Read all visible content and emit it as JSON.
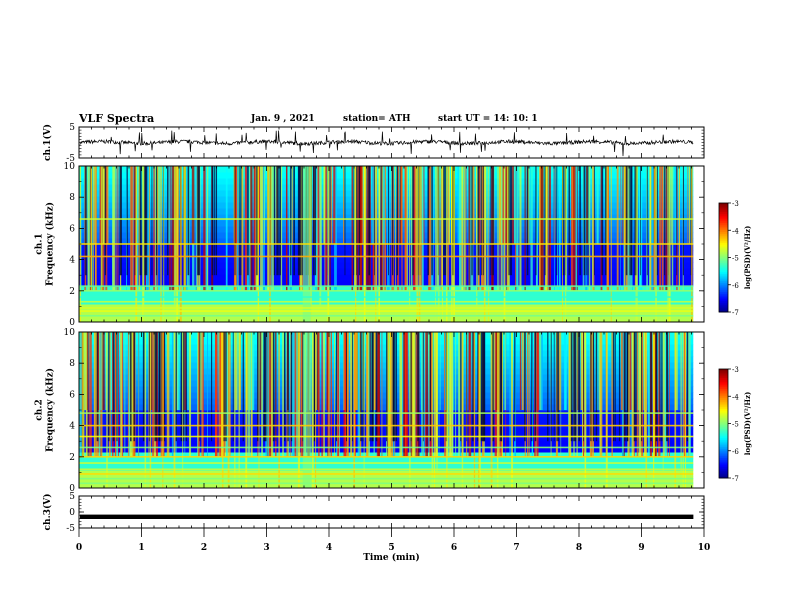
{
  "header": {
    "title": "VLF Spectra",
    "date": "Jan. 9 , 2021",
    "station": "station= ATH",
    "start_ut": "start  UT =   14: 10: 1"
  },
  "chart_data": [
    {
      "type": "line",
      "panel": "ch1-waveform",
      "ylabel": "ch.1(V)",
      "ylim": [
        -5,
        5
      ],
      "yticks": [
        "5",
        "-5"
      ],
      "xlim": [
        0,
        10
      ],
      "trace_level_v": 0,
      "trace_end_min": 9.83
    },
    {
      "type": "heatmap",
      "panel": "ch1-spectrogram",
      "ylabel": "ch.1\nFrequency (kHz)",
      "ylim": [
        0,
        10
      ],
      "yticks": [
        "0",
        "2",
        "4",
        "6",
        "8",
        "10"
      ],
      "xlim": [
        0,
        10
      ],
      "data_end_min": 9.83,
      "colorbar": {
        "label": "log(PSD)(V²/Hz)",
        "range": [
          -7,
          -3
        ],
        "ticks": [
          "-3",
          "-4",
          "-5",
          "-6",
          "-7"
        ]
      },
      "bands_khz": [
        0.4,
        0.7,
        0.9,
        1.3,
        1.6,
        2.0,
        2.3,
        4.2,
        5.0,
        6.6
      ]
    },
    {
      "type": "heatmap",
      "panel": "ch2-spectrogram",
      "ylabel": "ch.2\nFrequency (kHz)",
      "ylim": [
        0,
        10
      ],
      "yticks": [
        "0",
        "2",
        "4",
        "6",
        "8",
        "10"
      ],
      "xlim": [
        0,
        10
      ],
      "data_end_min": 9.83,
      "colorbar": {
        "label": "log(PSD)(V²/Hz)",
        "range": [
          -7,
          -3
        ],
        "ticks": [
          "-3",
          "-4",
          "-5",
          "-6",
          "-7"
        ]
      },
      "bands_khz": [
        0.3,
        0.6,
        0.9,
        1.2,
        1.6,
        2.0,
        2.6,
        3.3,
        4.0,
        4.8
      ]
    },
    {
      "type": "line",
      "panel": "ch3-waveform",
      "ylabel": "ch.3(V)",
      "ylim": [
        -5,
        5
      ],
      "yticks": [
        "5",
        "0",
        "-5"
      ],
      "xlim": [
        0,
        10
      ],
      "xlabel": "Time (min)",
      "xticks": [
        "0",
        "1",
        "2",
        "3",
        "4",
        "5",
        "6",
        "7",
        "8",
        "9",
        "10"
      ],
      "trace_level_v": -1.5,
      "trace_end_min": 9.83
    }
  ]
}
